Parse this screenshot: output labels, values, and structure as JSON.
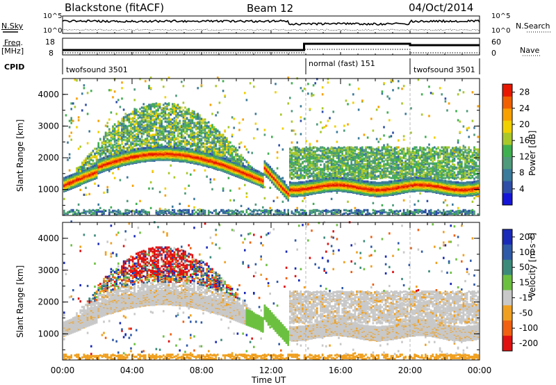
{
  "header": {
    "title": "Blackstone (fitACF)",
    "beam": "Beam 12",
    "date": "04/Oct/2014"
  },
  "side_labels": {
    "nsky": "N.Sky",
    "freq": "Freq.",
    "mhz": "[MHz]",
    "cpid": "CPID",
    "nsearch": "N.Search",
    "nave": "Nave"
  },
  "status_ticks": {
    "noise_left": [
      "10^5",
      "10^0"
    ],
    "noise_right": [
      "10^5",
      "10^0"
    ],
    "freq_left": [
      "18",
      "8"
    ],
    "nave_right": [
      "60",
      "0"
    ]
  },
  "cpid_segments": [
    {
      "label": "twofsound 3501",
      "start_hour": 0,
      "end_hour": 14
    },
    {
      "label": "normal (fast) 151",
      "start_hour": 14,
      "end_hour": 20
    },
    {
      "label": "twofsound 3501",
      "start_hour": 20,
      "end_hour": 24
    }
  ],
  "chart_data": [
    {
      "type": "heatmap",
      "name": "power",
      "ylabel": "Slant Range [km]",
      "ylim": [
        180,
        4500
      ],
      "yticks": [
        1000,
        2000,
        3000,
        4000
      ],
      "xlim": [
        0,
        24
      ],
      "xticks": [
        "00:00",
        "04:00",
        "08:00",
        "12:00",
        "16:00",
        "20:00",
        "00:00"
      ],
      "colorbar_label": "Power [dB]",
      "colorbar_ticks": [
        4,
        8,
        12,
        16,
        20,
        24,
        28
      ],
      "colorbar_range": [
        0,
        30
      ],
      "colors": [
        "#1515d8",
        "#2e4ea8",
        "#3a7a9a",
        "#4e9a7a",
        "#3fb04f",
        "#a8c82a",
        "#f0d000",
        "#f8a000",
        "#f06000",
        "#e81800"
      ]
    },
    {
      "type": "heatmap",
      "name": "velocity",
      "ylabel": "Slant Range [km]",
      "ylim": [
        180,
        4500
      ],
      "yticks": [
        1000,
        2000,
        3000,
        4000
      ],
      "xlim": [
        0,
        24
      ],
      "xticks": [
        "00:00",
        "04:00",
        "08:00",
        "12:00",
        "16:00",
        "20:00",
        "00:00"
      ],
      "xlabel": "Time UT",
      "colorbar_label": "Velocity [m s⁻¹]",
      "colorbar_ticks": [
        "200",
        "100",
        "50",
        "15",
        "-15",
        "-50",
        "-100",
        "-200"
      ],
      "colors": [
        "#1a2ab8",
        "#2f5aa8",
        "#3c8a7a",
        "#6cc040",
        "#c8c8c8",
        "#f0a020",
        "#f06010",
        "#e01010"
      ]
    }
  ]
}
